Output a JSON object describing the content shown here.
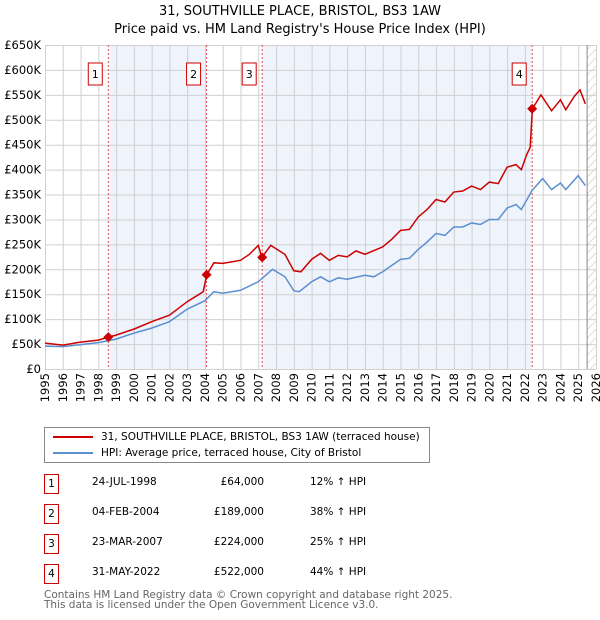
{
  "chart_data": {
    "type": "line",
    "title": "31, SOUTHVILLE PLACE, BRISTOL, BS3 1AW",
    "subtitle": "Price paid vs. HM Land Registry's House Price Index (HPI)",
    "xlim": [
      1995,
      2026
    ],
    "ylim": [
      0,
      650000
    ],
    "x_ticks": [
      "1995",
      "1996",
      "1997",
      "1998",
      "1999",
      "2000",
      "2001",
      "2002",
      "2003",
      "2004",
      "2005",
      "2006",
      "2007",
      "2008",
      "2009",
      "2010",
      "2011",
      "2012",
      "2013",
      "2014",
      "2015",
      "2016",
      "2017",
      "2018",
      "2019",
      "2020",
      "2021",
      "2022",
      "2023",
      "2024",
      "2025",
      "2026"
    ],
    "y_ticks": [
      "£0",
      "£50K",
      "£100K",
      "£150K",
      "£200K",
      "£250K",
      "£300K",
      "£350K",
      "£400K",
      "£450K",
      "£500K",
      "£550K",
      "£600K",
      "£650K"
    ],
    "grid": true,
    "series": [
      {
        "name": "31, SOUTHVILLE PLACE, BRISTOL, BS3 1AW (terraced house)",
        "color": "#cc0000",
        "x": [
          1995,
          1996,
          1997,
          1998,
          1998.56,
          1999,
          2000,
          2001,
          2002,
          2003,
          2003.9,
          2004.1,
          2004.5,
          2005,
          2006,
          2006.5,
          2007,
          2007.2,
          2007.7,
          2008.5,
          2009,
          2009.4,
          2010,
          2010.5,
          2011,
          2011.5,
          2012,
          2012.5,
          2013,
          2014,
          2014.5,
          2015,
          2015.5,
          2016,
          2016.5,
          2017,
          2017.5,
          2018,
          2018.5,
          2019,
          2019.5,
          2020,
          2020.5,
          2021,
          2021.5,
          2021.8,
          2022.1,
          2022.3,
          2022.42,
          2022.9,
          2023.5,
          2024,
          2024.3,
          2024.8,
          2025.1,
          2025.4
        ],
        "y": [
          52000,
          48000,
          54000,
          58000,
          64000,
          68000,
          80000,
          95000,
          108000,
          135000,
          155000,
          189000,
          213000,
          212000,
          218000,
          230000,
          248000,
          224000,
          248000,
          230000,
          197000,
          195000,
          220000,
          232000,
          218000,
          228000,
          225000,
          237000,
          230000,
          245000,
          260000,
          278000,
          280000,
          305000,
          320000,
          340000,
          335000,
          355000,
          357000,
          367000,
          360000,
          375000,
          372000,
          405000,
          410000,
          400000,
          430000,
          445000,
          522000,
          550000,
          518000,
          540000,
          520000,
          548000,
          560000,
          532000
        ]
      },
      {
        "name": "HPI: Average price, terraced house, City of Bristol",
        "color": "#5b8fd0",
        "x": [
          1995,
          1996,
          1997,
          1998,
          1999,
          2000,
          2001,
          2002,
          2003,
          2004,
          2004.5,
          2005,
          2006,
          2007,
          2007.8,
          2008.5,
          2009,
          2009.3,
          2010,
          2010.5,
          2011,
          2011.5,
          2012,
          2013,
          2013.5,
          2014,
          2015,
          2015.5,
          2016,
          2016.5,
          2017,
          2017.5,
          2018,
          2018.5,
          2019,
          2019.5,
          2020,
          2020.5,
          2021,
          2021.5,
          2021.8,
          2022.4,
          2023,
          2023.5,
          2024,
          2024.3,
          2024.8,
          2025,
          2025.4
        ],
        "y": [
          46000,
          45000,
          49000,
          53000,
          60000,
          72000,
          82000,
          95000,
          120000,
          137000,
          155000,
          152000,
          158000,
          175000,
          200000,
          185000,
          157000,
          155000,
          175000,
          185000,
          175000,
          183000,
          180000,
          188000,
          185000,
          195000,
          220000,
          222000,
          240000,
          255000,
          272000,
          268000,
          285000,
          285000,
          293000,
          290000,
          300000,
          300000,
          323000,
          330000,
          320000,
          358000,
          382000,
          360000,
          373000,
          360000,
          380000,
          388000,
          368000
        ]
      }
    ],
    "sales": [
      {
        "label": "1",
        "x": 1998.56,
        "date": "24-JUL-1998",
        "price": 64000,
        "price_text": "£64,000",
        "hpi_text": "12% ↑ HPI"
      },
      {
        "label": "2",
        "x": 2004.09,
        "date": "04-FEB-2004",
        "price": 189000,
        "price_text": "£189,000",
        "hpi_text": "38% ↑ HPI"
      },
      {
        "label": "3",
        "x": 2007.22,
        "date": "23-MAR-2007",
        "price": 224000,
        "price_text": "£224,000",
        "hpi_text": "25% ↑ HPI"
      },
      {
        "label": "4",
        "x": 2022.41,
        "date": "31-MAY-2022",
        "price": 522000,
        "price_text": "£522,000",
        "hpi_text": "44% ↑ HPI"
      }
    ],
    "forecast_start": 2025.5,
    "legend_placement": "below"
  },
  "footer": {
    "line1": "Contains HM Land Registry data © Crown copyright and database right 2025.",
    "line2": "This data is licensed under the Open Government Licence v3.0."
  }
}
